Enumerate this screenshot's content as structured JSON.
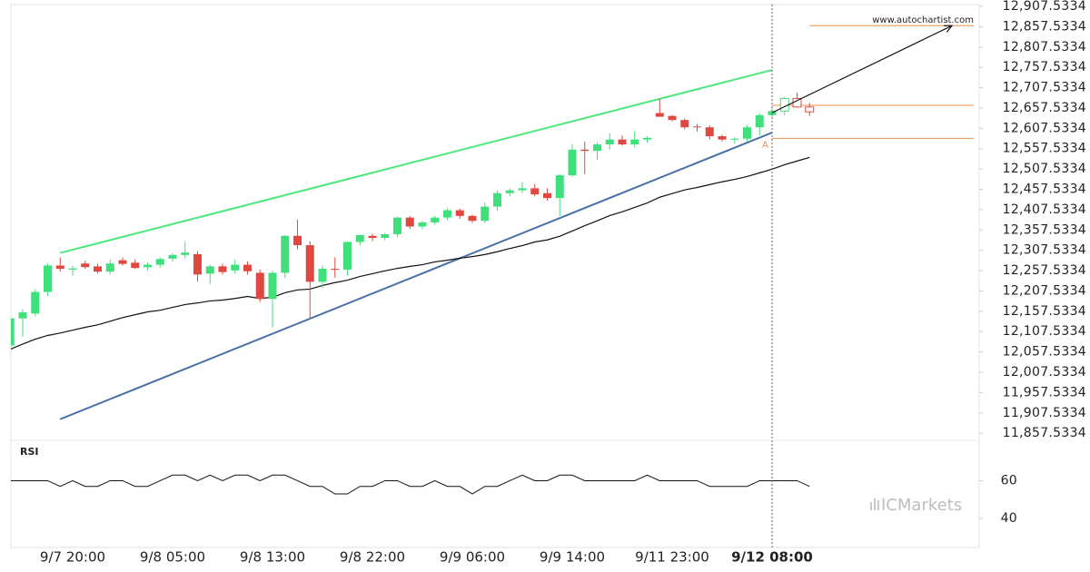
{
  "chart_data": {
    "type": "candlestick",
    "categories": [
      null,
      null,
      null,
      null,
      null,
      "9/7 20:00",
      null,
      null,
      null,
      null,
      null,
      null,
      null,
      "9/8 05:00",
      null,
      null,
      null,
      null,
      null,
      null,
      null,
      "9/8 13:00",
      null,
      null,
      null,
      null,
      null,
      null,
      null,
      "9/8 22:00",
      null,
      null,
      null,
      null,
      null,
      null,
      null,
      "9/9 06:00",
      null,
      null,
      null,
      null,
      null,
      null,
      null,
      "9/9 14:00",
      null,
      null,
      null,
      null,
      null,
      null,
      null,
      "9/11 23:00",
      null,
      null,
      null,
      null,
      null,
      null,
      null,
      "9/12 08:00",
      null,
      null,
      null
    ],
    "open": [
      12073,
      12140,
      12152,
      12205,
      12270,
      12260,
      12275,
      12268,
      12255,
      12283,
      12277,
      12266,
      12272,
      12287,
      12296,
      12298,
      12250,
      12268,
      12258,
      12272,
      12252,
      12188,
      12252,
      12343,
      12320,
      12230,
      12262,
      12260,
      12328,
      12343,
      12338,
      12347,
      12388,
      12366,
      12376,
      12388,
      12406,
      12392,
      12380,
      12415,
      12448,
      12455,
      12460,
      12448,
      12436,
      12492,
      12555,
      12552,
      12568,
      12580,
      12568,
      12580,
      12645,
      12638,
      12628,
      12612,
      12610,
      12588,
      12580,
      12582,
      12610,
      12640,
      12650,
      12681,
      12660
    ],
    "high": [
      12150,
      12162,
      12212,
      12275,
      12290,
      12270,
      12282,
      12275,
      12285,
      12290,
      12285,
      12278,
      12290,
      12300,
      12328,
      12305,
      12272,
      12275,
      12285,
      12280,
      12260,
      12258,
      12345,
      12383,
      12330,
      12270,
      12290,
      12330,
      12345,
      12348,
      12350,
      12390,
      12392,
      12380,
      12392,
      12410,
      12410,
      12395,
      12425,
      12455,
      12460,
      12475,
      12470,
      12460,
      12495,
      12568,
      12575,
      12573,
      12595,
      12590,
      12600,
      12588,
      12680,
      12640,
      12632,
      12618,
      12615,
      12592,
      12585,
      12615,
      12645,
      12660,
      12685,
      12695,
      12670
    ],
    "low": [
      12060,
      12095,
      12145,
      12195,
      12255,
      12245,
      12262,
      12250,
      12248,
      12270,
      12262,
      12258,
      12265,
      12280,
      12288,
      12230,
      12225,
      12248,
      12250,
      12248,
      12180,
      12118,
      12240,
      12310,
      12140,
      12215,
      12240,
      12245,
      12320,
      12330,
      12332,
      12340,
      12360,
      12360,
      12370,
      12382,
      12385,
      12375,
      12375,
      12405,
      12440,
      12448,
      12440,
      12430,
      12392,
      12488,
      12495,
      12530,
      12555,
      12565,
      12560,
      12572,
      12636,
      12625,
      12605,
      12600,
      12580,
      12575,
      12570,
      12575,
      12590,
      12630,
      12640,
      12660,
      12638
    ],
    "close": [
      12140,
      12155,
      12205,
      12270,
      12262,
      12263,
      12266,
      12255,
      12275,
      12274,
      12264,
      12272,
      12286,
      12296,
      12302,
      12248,
      12268,
      12254,
      12272,
      12256,
      12188,
      12252,
      12343,
      12320,
      12230,
      12262,
      12260,
      12328,
      12345,
      12338,
      12347,
      12388,
      12366,
      12376,
      12388,
      12406,
      12392,
      12380,
      12415,
      12448,
      12455,
      12460,
      12445,
      12436,
      12492,
      12555,
      12552,
      12568,
      12580,
      12568,
      12580,
      12584,
      12636,
      12628,
      12610,
      12610,
      12588,
      12580,
      12582,
      12610,
      12640,
      12650,
      12681,
      12660,
      12648
    ],
    "up_color": "#3fe07c",
    "down_color": "#e0483f",
    "hollow_from_index": 62,
    "ylim": [
      11840,
      12912
    ],
    "yticks": [
      {
        "value": 12907.5334,
        "label": "12,907.5334"
      },
      {
        "value": 12857.5334,
        "label": "12,857.5334"
      },
      {
        "value": 12807.5334,
        "label": "12,807.5334"
      },
      {
        "value": 12757.5334,
        "label": "12,757.5334"
      },
      {
        "value": 12707.5334,
        "label": "12,707.5334"
      },
      {
        "value": 12657.5334,
        "label": "12,657.5334"
      },
      {
        "value": 12607.5334,
        "label": "12,607.5334"
      },
      {
        "value": 12557.5334,
        "label": "12,557.5334"
      },
      {
        "value": 12507.5334,
        "label": "12,507.5334"
      },
      {
        "value": 12457.5334,
        "label": "12,457.5334"
      },
      {
        "value": 12407.5334,
        "label": "12,407.5334"
      },
      {
        "value": 12357.5334,
        "label": "12,357.5334"
      },
      {
        "value": 12307.5334,
        "label": "12,307.5334"
      },
      {
        "value": 12257.5334,
        "label": "12,257.5334"
      },
      {
        "value": 12207.5334,
        "label": "12,207.5334"
      },
      {
        "value": 12157.5334,
        "label": "12,157.5334"
      },
      {
        "value": 12107.5334,
        "label": "12,107.5334"
      },
      {
        "value": 12057.5334,
        "label": "12,057.5334"
      },
      {
        "value": 12007.5334,
        "label": "12,007.5334"
      },
      {
        "value": 11957.5334,
        "label": "11,957.5334"
      },
      {
        "value": 11907.5334,
        "label": "11,907.5334"
      },
      {
        "value": 11857.5334,
        "label": "11,857.5334"
      }
    ],
    "moving_average": {
      "color": "#111111",
      "values": [
        12064,
        12077,
        12089,
        12098,
        12104,
        12111,
        12118,
        12124,
        12133,
        12142,
        12149,
        12156,
        12160,
        12167,
        12174,
        12178,
        12183,
        12185,
        12189,
        12194,
        12189,
        12192,
        12203,
        12210,
        12212,
        12221,
        12228,
        12234,
        12243,
        12250,
        12257,
        12263,
        12268,
        12272,
        12279,
        12283,
        12288,
        12292,
        12297,
        12304,
        12312,
        12319,
        12328,
        12333,
        12342,
        12355,
        12368,
        12380,
        12393,
        12402,
        12413,
        12424,
        12438,
        12447,
        12456,
        12462,
        12469,
        12476,
        12482,
        12489,
        12498,
        12507,
        12518,
        12527,
        12536
      ]
    },
    "trendlines": [
      {
        "color": "#4de87c",
        "start": [
          4,
          12301
        ],
        "end": [
          61,
          12751
        ]
      },
      {
        "color": "#4a72a8",
        "start": [
          4,
          11892
        ],
        "end": [
          61,
          12597
        ]
      }
    ],
    "arrow": {
      "color": "#111111",
      "start": [
        61,
        12646
      ],
      "end": [
        75.4,
        12860
      ]
    },
    "level_color": "#e8904a",
    "levels": [
      {
        "price": 12860,
        "from": 64
      },
      {
        "price": 12664,
        "from": 61
      },
      {
        "price": 12583,
        "from": 61
      }
    ],
    "marker_index": 61,
    "marker_label": "A",
    "source": "www.autochartist.com",
    "watermark": "ICMarkets",
    "rsi": {
      "title": "RSI",
      "color": "#111111",
      "ylim": [
        26,
        80
      ],
      "yticks": [
        60,
        40
      ],
      "values": [
        60,
        60,
        60,
        60,
        57,
        60,
        57,
        57,
        60,
        60,
        57,
        57,
        60,
        63,
        63,
        60,
        63,
        60,
        63,
        63,
        60,
        63,
        63,
        60,
        57,
        57,
        53,
        53,
        57,
        57,
        60,
        60,
        57,
        57,
        60,
        57,
        57,
        53,
        57,
        57,
        60,
        63,
        60,
        60,
        63,
        63,
        60,
        60,
        60,
        60,
        60,
        63,
        60,
        60,
        60,
        60,
        57,
        57,
        57,
        57,
        60,
        60,
        60,
        60,
        57
      ]
    }
  }
}
